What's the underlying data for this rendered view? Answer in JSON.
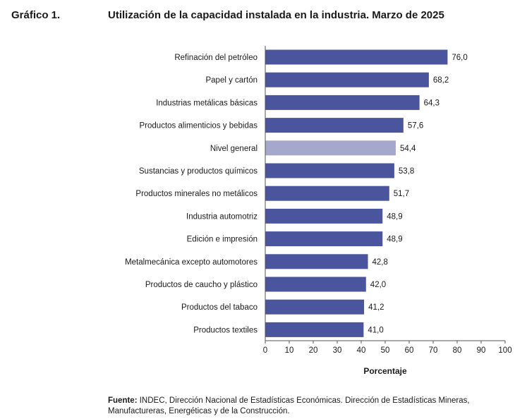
{
  "header": {
    "figure_label": "Gráfico 1.",
    "title": "Utilización de la capacidad instalada en la industria. Marzo de 2025"
  },
  "footer": {
    "source_label": "Fuente:",
    "source_text": " INDEC, Dirección Nacional de Estadísticas Económicas. Dirección de Estadísticas Mineras, Manufactureras, Energéticas y de la Construcción."
  },
  "colors": {
    "bar": "#4a559e",
    "highlight_bar": "#a5a7cc"
  },
  "chart_data": {
    "type": "bar",
    "orientation": "horizontal",
    "categories": [
      "Refinación del petróleo",
      "Papel y cartón",
      "Industrias metálicas básicas",
      "Productos alimenticios y bebidas",
      "Nivel general",
      "Sustancias y productos químicos",
      "Productos minerales no metálicos",
      "Industria automotriz",
      "Edición e impresión",
      "Metalmecánica excepto automotores",
      "Productos de caucho y plástico",
      "Productos del tabaco",
      "Productos textiles"
    ],
    "values": [
      76.0,
      68.2,
      64.3,
      57.6,
      54.4,
      53.8,
      51.7,
      48.9,
      48.9,
      42.8,
      42.0,
      41.2,
      41.0
    ],
    "value_labels": [
      "76,0",
      "68,2",
      "64,3",
      "57,6",
      "54,4",
      "53,8",
      "51,7",
      "48,9",
      "48,9",
      "42,8",
      "42,0",
      "41,2",
      "41,0"
    ],
    "highlight": "Nivel general",
    "xlim": [
      0,
      100
    ],
    "xticks": [
      0,
      10,
      20,
      30,
      40,
      50,
      60,
      70,
      80,
      90,
      100
    ],
    "xlabel": "Porcentaje",
    "ylabel": "",
    "grid": false,
    "legend": "none"
  }
}
